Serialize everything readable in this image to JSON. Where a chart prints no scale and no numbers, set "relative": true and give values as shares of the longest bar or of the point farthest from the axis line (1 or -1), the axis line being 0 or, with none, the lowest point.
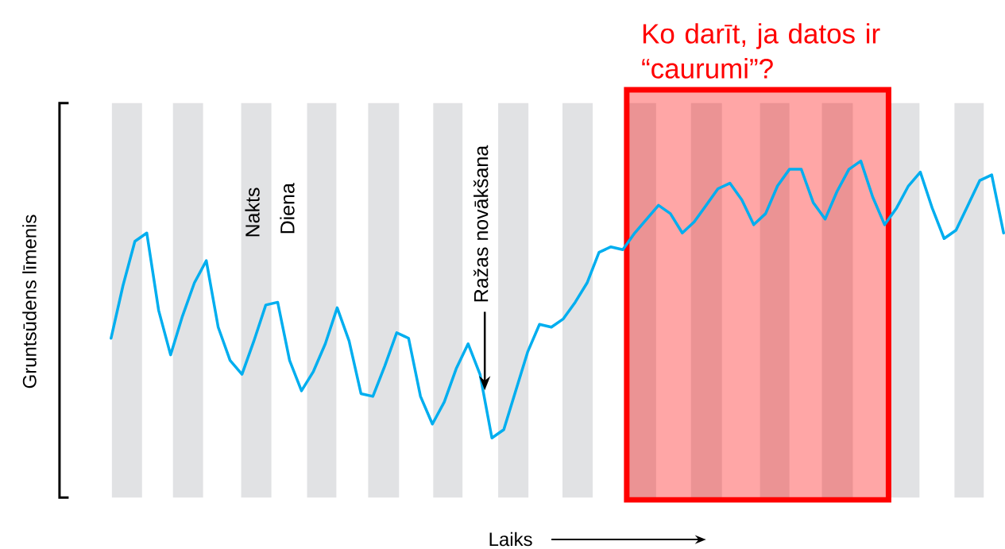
{
  "chart_data": {
    "type": "line",
    "relative": true,
    "ylabel": "Gruntsūdens līmenis",
    "xlabel": "Laiks",
    "categories": [
      null,
      null,
      null,
      null,
      null,
      null,
      null,
      null,
      null,
      null,
      null,
      null,
      null,
      null,
      null,
      null,
      null,
      null,
      null,
      null,
      null,
      null,
      null,
      null,
      null,
      null,
      null,
      null,
      null,
      null,
      null,
      null,
      null,
      null,
      null,
      null,
      null,
      null,
      null,
      null,
      null,
      null,
      null,
      null,
      null,
      null,
      null,
      null,
      null,
      null,
      null,
      null,
      null,
      null,
      null,
      null,
      null,
      null,
      null,
      null,
      null,
      null,
      null,
      null,
      null,
      null,
      null,
      null,
      null,
      null,
      null,
      null,
      null,
      null,
      null,
      null
    ],
    "series": [
      {
        "color": "#00aeef",
        "values": [
          0.36,
          0.55,
          0.71,
          0.74,
          0.46,
          0.3,
          0.44,
          0.56,
          0.64,
          0.4,
          0.28,
          0.23,
          0.35,
          0.48,
          0.49,
          0.28,
          0.17,
          0.24,
          0.34,
          0.47,
          0.35,
          0.16,
          0.15,
          0.26,
          0.38,
          0.36,
          0.15,
          0.05,
          0.13,
          0.25,
          0.34,
          0.23,
          0,
          0.03,
          0.17,
          0.31,
          0.41,
          0.4,
          0.43,
          0.49,
          0.56,
          0.67,
          0.69,
          0.68,
          0.74,
          0.79,
          0.84,
          0.81,
          0.74,
          0.78,
          0.84,
          0.9,
          0.92,
          0.86,
          0.77,
          0.81,
          0.91,
          0.97,
          0.97,
          0.85,
          0.79,
          0.89,
          0.97,
          1,
          0.87,
          0.77,
          0.83,
          0.91,
          0.96,
          0.83,
          0.72,
          0.75,
          0.84,
          0.93,
          0.95,
          0.74
        ]
      }
    ],
    "annotations": [
      "Ko darīt, ja datos ir “caurumi”?",
      "Nakts",
      "Diena",
      "Ražas novākšana"
    ],
    "marker": "none",
    "line_style": "solid"
  }
}
